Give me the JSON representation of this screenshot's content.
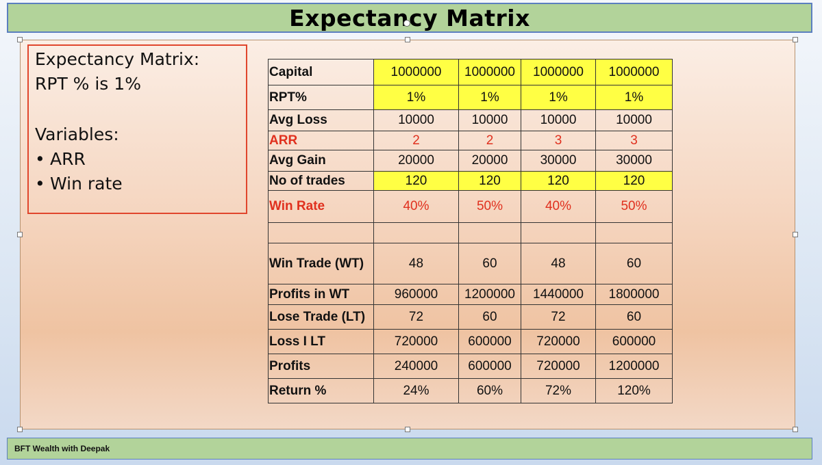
{
  "header": {
    "title": "Expectancy Matrix"
  },
  "textbox": {
    "line1": "Expectancy Matrix:",
    "line2": "RPT % is 1%",
    "line3": "Variables:",
    "bullets": [
      "ARR",
      "Win rate"
    ]
  },
  "table": {
    "rows": [
      {
        "label": "Capital",
        "values": [
          "1000000",
          "1000000",
          "1000000",
          "1000000"
        ]
      },
      {
        "label": "RPT%",
        "values": [
          "1%",
          "1%",
          "1%",
          "1%"
        ]
      },
      {
        "label": "Avg Loss",
        "values": [
          "10000",
          "10000",
          "10000",
          "10000"
        ]
      },
      {
        "label": "ARR",
        "values": [
          "2",
          "2",
          "3",
          "3"
        ]
      },
      {
        "label": "Avg Gain",
        "values": [
          "20000",
          "20000",
          "30000",
          "30000"
        ]
      },
      {
        "label": "No of trades",
        "values": [
          "120",
          "120",
          "120",
          "120"
        ]
      },
      {
        "label": "Win Rate",
        "values": [
          "40%",
          "50%",
          "40%",
          "50%"
        ]
      },
      {
        "label": "",
        "values": [
          "",
          "",
          "",
          ""
        ]
      },
      {
        "label": "Win Trade (WT)",
        "values": [
          "48",
          "60",
          "48",
          "60"
        ]
      },
      {
        "label": "Profits in WT",
        "values": [
          "960000",
          "1200000",
          "1440000",
          "1800000"
        ]
      },
      {
        "label": "Lose Trade (LT)",
        "values": [
          "72",
          "60",
          "72",
          "60"
        ]
      },
      {
        "label": "Loss I LT",
        "values": [
          "720000",
          "600000",
          "720000",
          "600000"
        ]
      },
      {
        "label": "Profits",
        "values": [
          "240000",
          "600000",
          "720000",
          "1200000"
        ]
      },
      {
        "label": "Return %",
        "values": [
          "24%",
          "60%",
          "72%",
          "120%"
        ]
      }
    ]
  },
  "footer": {
    "text": "BFT  Wealth with Deepak"
  },
  "colors": {
    "title_bar": "#b2d39a",
    "highlight": "#ffff44",
    "accent_red": "#e0301e",
    "border_red": "#e0452c"
  }
}
